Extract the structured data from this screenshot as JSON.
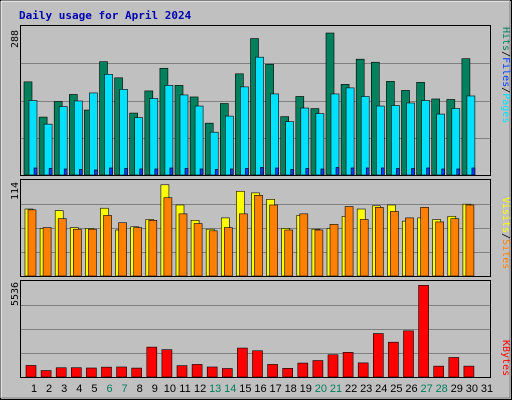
{
  "title": "Daily usage for April 2024",
  "colors": {
    "hits": "#00805c",
    "files": "#0040ff",
    "pages": "#00e0ff",
    "visits": "#ffff00",
    "sites": "#ff8000",
    "kbytes": "#ff0000",
    "weekday_label": "#000000",
    "weekend_label": "#00805c"
  },
  "chart_data": [
    {
      "type": "bar",
      "name": "pages-files-hits",
      "max_label": "288",
      "legend": {
        "pages": "Pages",
        "sep1": "/",
        "files": "Files",
        "sep2": "/",
        "hits": "Hits"
      },
      "categories": [
        "1",
        "2",
        "3",
        "4",
        "5",
        "6",
        "7",
        "8",
        "9",
        "10",
        "11",
        "12",
        "13",
        "14",
        "15",
        "16",
        "17",
        "18",
        "19",
        "20",
        "21",
        "22",
        "23",
        "24",
        "25",
        "26",
        "27",
        "28",
        "29",
        "30",
        "31"
      ],
      "ylim": [
        0,
        288
      ],
      "series": [
        {
          "name": "Hits",
          "values": [
            185,
            115,
            146,
            160,
            129,
            225,
            193,
            123,
            167,
            212,
            178,
            155,
            103,
            142,
            201,
            271,
            220,
            116,
            156,
            132,
            282,
            180,
            230,
            224,
            186,
            168,
            184,
            151,
            150,
            231,
            0
          ]
        },
        {
          "name": "Files",
          "values": [
            14,
            13,
            12,
            11,
            10,
            14,
            13,
            12,
            12,
            14,
            13,
            12,
            11,
            12,
            13,
            15,
            14,
            11,
            13,
            12,
            15,
            14,
            14,
            14,
            13,
            13,
            14,
            12,
            12,
            14,
            0
          ]
        },
        {
          "name": "Pages",
          "values": [
            148,
            101,
            136,
            147,
            163,
            200,
            170,
            114,
            152,
            178,
            159,
            137,
            85,
            117,
            175,
            234,
            161,
            106,
            133,
            122,
            161,
            173,
            156,
            137,
            138,
            143,
            148,
            121,
            132,
            157,
            0
          ]
        }
      ]
    },
    {
      "type": "bar",
      "name": "visits-sites",
      "max_label": "114",
      "legend": {
        "visits": "Visits",
        "sep1": "/",
        "sites": "Sites"
      },
      "categories": [
        "1",
        "2",
        "3",
        "4",
        "5",
        "6",
        "7",
        "8",
        "9",
        "10",
        "11",
        "12",
        "13",
        "14",
        "15",
        "16",
        "17",
        "18",
        "19",
        "20",
        "21",
        "22",
        "23",
        "24",
        "25",
        "26",
        "27",
        "28",
        "29",
        "30",
        "31"
      ],
      "ylim": [
        0,
        114
      ],
      "series": [
        {
          "name": "Visits",
          "values": [
            83,
            59,
            81,
            60,
            59,
            84,
            57,
            61,
            70,
            113,
            88,
            69,
            58,
            72,
            105,
            103,
            95,
            59,
            75,
            58,
            59,
            74,
            83,
            87,
            88,
            68,
            72,
            70,
            74,
            89,
            0
          ]
        },
        {
          "name": "Sites",
          "values": [
            82,
            60,
            71,
            58,
            58,
            75,
            66,
            60,
            69,
            97,
            77,
            65,
            56,
            60,
            77,
            100,
            88,
            57,
            77,
            57,
            64,
            86,
            70,
            85,
            80,
            72,
            85,
            67,
            71,
            88,
            0
          ]
        }
      ]
    },
    {
      "type": "bar",
      "name": "kbytes",
      "max_label": "5536",
      "legend": {
        "kbytes": "KBytes"
      },
      "categories": [
        "1",
        "2",
        "3",
        "4",
        "5",
        "6",
        "7",
        "8",
        "9",
        "10",
        "11",
        "12",
        "13",
        "14",
        "15",
        "16",
        "17",
        "18",
        "19",
        "20",
        "21",
        "22",
        "23",
        "24",
        "25",
        "26",
        "27",
        "28",
        "29",
        "30",
        "31"
      ],
      "ylim": [
        0,
        5536
      ],
      "series": [
        {
          "name": "KBytes",
          "values": [
            680,
            380,
            545,
            548,
            530,
            580,
            590,
            525,
            1760,
            1610,
            670,
            740,
            590,
            500,
            1705,
            1545,
            740,
            510,
            820,
            970,
            1310,
            1450,
            830,
            2560,
            2050,
            2720,
            5400,
            640,
            1150,
            640,
            0
          ]
        }
      ]
    }
  ],
  "weekend_days": [
    "6",
    "7",
    "13",
    "14",
    "20",
    "21",
    "27",
    "28"
  ]
}
